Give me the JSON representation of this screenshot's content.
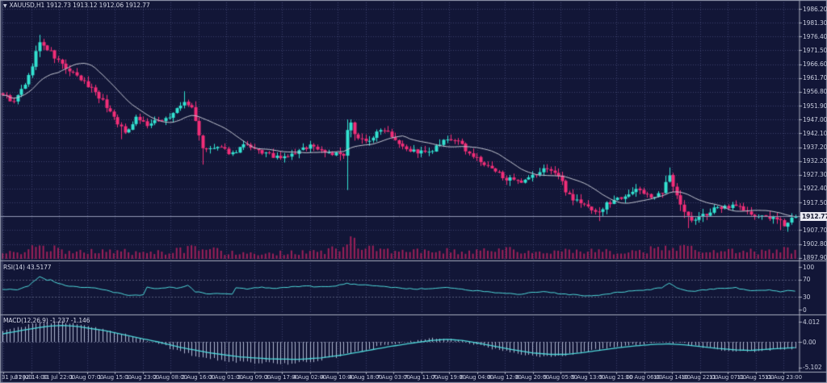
{
  "title_bar": {
    "collapse_icon": "▼",
    "symbol_info": "XAUUSD,H1  1912.73 1913.12 1912.06 1912.77"
  },
  "panes": {
    "rsi": {
      "label": "RSI(14) 43.5177",
      "level_labels": [
        "100",
        "70",
        "30",
        "0"
      ]
    },
    "macd": {
      "label": "MACD(12,26,9) -1.237 -1.146",
      "level_labels": [
        "4.012",
        "0.00",
        "-5.102"
      ]
    }
  },
  "price_axis": {
    "labels": [
      "1986.20",
      "1981.30",
      "1976.40",
      "1971.50",
      "1966.60",
      "1961.70",
      "1956.80",
      "1951.90",
      "1947.00",
      "1942.10",
      "1937.20",
      "1932.20",
      "1927.30",
      "1922.40",
      "1917.50",
      "1912.60",
      "1907.70",
      "1902.80",
      "1897.90"
    ],
    "current_price": "1912.77"
  },
  "time_axis": {
    "labels": [
      "31 Jul 2023",
      "31 Jul 14:00",
      "31 Jul 22:00",
      "1 Aug 07:00",
      "1 Aug 15:00",
      "1 Aug 23:00",
      "2 Aug 08:00",
      "2 Aug 16:00",
      "3 Aug 01:00",
      "3 Aug 09:00",
      "3 Aug 17:00",
      "4 Aug 02:00",
      "4 Aug 10:00",
      "4 Aug 18:00",
      "7 Aug 03:00",
      "7 Aug 11:00",
      "7 Aug 19:00",
      "8 Aug 04:00",
      "8 Aug 12:00",
      "8 Aug 20:00",
      "9 Aug 05:00",
      "9 Aug 13:00",
      "9 Aug 21:00",
      "10 Aug 06:00",
      "10 Aug 14:00",
      "10 Aug 22:00",
      "11 Aug 07:00",
      "11 Aug 15:00",
      "11 Aug 23:00"
    ]
  },
  "colors": {
    "background": "#121637",
    "bull": "#33e2d1",
    "bear": "#f22e78",
    "volume": "#9e2059",
    "ma": "#c2c5d1",
    "indicator_line": "#4fd8da",
    "histogram": "#aeb6cf",
    "grid": "rgba(92,100,152,0.55)",
    "level_line": "rgba(150,156,190,0.5)",
    "separator": "#a9aebf",
    "price_line": "#9298b4",
    "frame": "#9aa0b4"
  },
  "chart_data": [
    {
      "type": "candlestick",
      "title": "XAUUSD H1",
      "bars": 215,
      "ylim": [
        1897.9,
        1986.2
      ],
      "y_step": 4.9,
      "x_range": [
        "31 Jul 2023 00:00",
        "11 Aug 2023 23:00"
      ],
      "ohlc_last": {
        "open": 1912.73,
        "high": 1913.12,
        "low": 1912.06,
        "close": 1912.77
      },
      "current_price": 1912.77,
      "overlay": "SMA",
      "noise_seed": 9,
      "close_anchors": [
        [
          0,
          1956
        ],
        [
          3,
          1953
        ],
        [
          7,
          1962
        ],
        [
          9,
          1971
        ],
        [
          10,
          1974
        ],
        [
          12,
          1972
        ],
        [
          14,
          1969
        ],
        [
          18,
          1964
        ],
        [
          21,
          1961
        ],
        [
          25,
          1957
        ],
        [
          30,
          1948
        ],
        [
          32,
          1944
        ],
        [
          33,
          1942
        ],
        [
          36,
          1948
        ],
        [
          39,
          1945
        ],
        [
          45,
          1948
        ],
        [
          49,
          1953
        ],
        [
          51,
          1951
        ],
        [
          53,
          1942
        ],
        [
          54,
          1936
        ],
        [
          58,
          1937
        ],
        [
          62,
          1935
        ],
        [
          65,
          1938
        ],
        [
          68,
          1936
        ],
        [
          71,
          1935
        ],
        [
          75,
          1933
        ],
        [
          79,
          1935
        ],
        [
          83,
          1938
        ],
        [
          86,
          1936
        ],
        [
          89,
          1935
        ],
        [
          92,
          1934
        ],
        [
          93,
          1942
        ],
        [
          94,
          1945
        ],
        [
          96,
          1941
        ],
        [
          98,
          1939
        ],
        [
          101,
          1942
        ],
        [
          103,
          1944
        ],
        [
          107,
          1939
        ],
        [
          110,
          1936
        ],
        [
          115,
          1935
        ],
        [
          119,
          1939
        ],
        [
          122,
          1940
        ],
        [
          127,
          1934
        ],
        [
          131,
          1930
        ],
        [
          135,
          1927
        ],
        [
          138,
          1925
        ],
        [
          140,
          1924
        ],
        [
          142,
          1926
        ],
        [
          147,
          1930
        ],
        [
          150,
          1927
        ],
        [
          152,
          1922
        ],
        [
          154,
          1919
        ],
        [
          158,
          1916
        ],
        [
          161,
          1914
        ],
        [
          163,
          1917
        ],
        [
          166,
          1919
        ],
        [
          169,
          1921
        ],
        [
          172,
          1922
        ],
        [
          176,
          1919
        ],
        [
          178,
          1921
        ],
        [
          180,
          1927
        ],
        [
          182,
          1921
        ],
        [
          184,
          1914
        ],
        [
          186,
          1911
        ],
        [
          189,
          1913
        ],
        [
          192,
          1915
        ],
        [
          195,
          1916
        ],
        [
          198,
          1917
        ],
        [
          201,
          1914
        ],
        [
          204,
          1912
        ],
        [
          206,
          1913
        ],
        [
          209,
          1911
        ],
        [
          211,
          1910
        ],
        [
          213,
          1912
        ],
        [
          214,
          1912.77
        ]
      ],
      "wick_events": [
        {
          "bar": 10,
          "high": 1977
        },
        {
          "bar": 32,
          "low": 1940
        },
        {
          "bar": 49,
          "high": 1957
        },
        {
          "bar": 54,
          "low": 1931
        },
        {
          "bar": 93,
          "low": 1922,
          "high": 1947
        },
        {
          "bar": 152,
          "low": 1920
        },
        {
          "bar": 161,
          "low": 1911
        },
        {
          "bar": 180,
          "high": 1930
        },
        {
          "bar": 185,
          "low": 1908.5
        },
        {
          "bar": 210,
          "low": 1907.8
        }
      ],
      "volume_profile_anchors": [
        [
          0,
          0.2
        ],
        [
          8,
          0.45
        ],
        [
          12,
          0.5
        ],
        [
          20,
          0.3
        ],
        [
          30,
          0.4
        ],
        [
          36,
          0.25
        ],
        [
          45,
          0.3
        ],
        [
          50,
          0.45
        ],
        [
          54,
          0.5
        ],
        [
          60,
          0.3
        ],
        [
          70,
          0.25
        ],
        [
          80,
          0.3
        ],
        [
          88,
          0.35
        ],
        [
          92,
          0.6
        ],
        [
          93,
          1.0
        ],
        [
          95,
          0.8
        ],
        [
          99,
          0.45
        ],
        [
          104,
          0.4
        ],
        [
          110,
          0.35
        ],
        [
          118,
          0.4
        ],
        [
          124,
          0.3
        ],
        [
          131,
          0.4
        ],
        [
          137,
          0.45
        ],
        [
          141,
          0.35
        ],
        [
          148,
          0.3
        ],
        [
          153,
          0.4
        ],
        [
          160,
          0.35
        ],
        [
          167,
          0.3
        ],
        [
          173,
          0.35
        ],
        [
          179,
          0.55
        ],
        [
          183,
          0.6
        ],
        [
          187,
          0.4
        ],
        [
          193,
          0.35
        ],
        [
          198,
          0.4
        ],
        [
          204,
          0.3
        ],
        [
          210,
          0.45
        ],
        [
          214,
          0.35
        ]
      ]
    },
    {
      "type": "line",
      "name": "RSI",
      "params": "14",
      "current": 43.5177,
      "range": [
        0,
        100
      ],
      "levels": [
        70,
        30
      ],
      "anchors": [
        [
          0,
          48
        ],
        [
          4,
          46
        ],
        [
          7,
          56
        ],
        [
          10,
          77
        ],
        [
          12,
          68
        ],
        [
          13,
          70
        ],
        [
          15,
          61
        ],
        [
          18,
          55
        ],
        [
          22,
          52
        ],
        [
          26,
          49
        ],
        [
          30,
          41
        ],
        [
          33,
          35
        ],
        [
          35,
          33
        ],
        [
          38,
          34
        ],
        [
          39,
          53
        ],
        [
          42,
          49
        ],
        [
          45,
          52
        ],
        [
          47,
          50
        ],
        [
          50,
          57
        ],
        [
          52,
          42
        ],
        [
          55,
          38
        ],
        [
          58,
          37
        ],
        [
          62,
          36
        ],
        [
          63,
          51
        ],
        [
          66,
          49
        ],
        [
          70,
          52
        ],
        [
          74,
          50
        ],
        [
          78,
          53
        ],
        [
          82,
          55
        ],
        [
          86,
          53
        ],
        [
          90,
          56
        ],
        [
          93,
          62
        ],
        [
          96,
          57
        ],
        [
          100,
          57
        ],
        [
          104,
          53
        ],
        [
          108,
          50
        ],
        [
          112,
          48
        ],
        [
          116,
          50
        ],
        [
          120,
          52
        ],
        [
          124,
          47
        ],
        [
          128,
          44
        ],
        [
          132,
          41
        ],
        [
          136,
          38
        ],
        [
          140,
          36
        ],
        [
          143,
          40
        ],
        [
          146,
          43
        ],
        [
          150,
          38
        ],
        [
          154,
          35
        ],
        [
          158,
          32
        ],
        [
          162,
          35
        ],
        [
          166,
          40
        ],
        [
          170,
          44
        ],
        [
          174,
          46
        ],
        [
          178,
          52
        ],
        [
          180,
          62
        ],
        [
          182,
          52
        ],
        [
          184,
          46
        ],
        [
          186,
          43
        ],
        [
          189,
          46
        ],
        [
          192,
          48
        ],
        [
          195,
          50
        ],
        [
          198,
          51
        ],
        [
          201,
          46
        ],
        [
          204,
          44
        ],
        [
          207,
          46
        ],
        [
          210,
          42
        ],
        [
          212,
          44
        ],
        [
          214,
          43.5
        ]
      ]
    },
    {
      "type": "line+histogram",
      "name": "MACD",
      "params": "12,26,9",
      "current_macd": -1.237,
      "current_signal": -1.146,
      "axis_values": [
        4.012,
        0.0,
        -5.102
      ],
      "signal_anchors": [
        [
          0,
          1.6
        ],
        [
          6,
          2.4
        ],
        [
          12,
          3.1
        ],
        [
          16,
          3.3
        ],
        [
          20,
          3.1
        ],
        [
          28,
          2.2
        ],
        [
          36,
          0.9
        ],
        [
          42,
          0
        ],
        [
          48,
          -1.1
        ],
        [
          56,
          -2.2
        ],
        [
          64,
          -3.0
        ],
        [
          72,
          -3.4
        ],
        [
          80,
          -3.5
        ],
        [
          86,
          -3.2
        ],
        [
          92,
          -2.6
        ],
        [
          98,
          -1.8
        ],
        [
          104,
          -1.0
        ],
        [
          110,
          -0.3
        ],
        [
          116,
          0.3
        ],
        [
          120,
          0.5
        ],
        [
          124,
          0.3
        ],
        [
          128,
          -0.2
        ],
        [
          133,
          -0.9
        ],
        [
          138,
          -1.6
        ],
        [
          143,
          -2.2
        ],
        [
          148,
          -2.5
        ],
        [
          152,
          -2.5
        ],
        [
          156,
          -2.2
        ],
        [
          161,
          -1.7
        ],
        [
          166,
          -1.2
        ],
        [
          171,
          -0.8
        ],
        [
          176,
          -0.5
        ],
        [
          180,
          -0.4
        ],
        [
          184,
          -0.6
        ],
        [
          188,
          -0.9
        ],
        [
          193,
          -1.3
        ],
        [
          198,
          -1.6
        ],
        [
          202,
          -1.7
        ],
        [
          206,
          -1.5
        ],
        [
          210,
          -1.3
        ],
        [
          214,
          -1.146
        ]
      ],
      "macd_anchors": [
        [
          0,
          2.2
        ],
        [
          6,
          3.2
        ],
        [
          12,
          3.9
        ],
        [
          16,
          4.0
        ],
        [
          20,
          3.6
        ],
        [
          28,
          2.4
        ],
        [
          36,
          0.8
        ],
        [
          41,
          0
        ],
        [
          46,
          -1.5
        ],
        [
          52,
          -2.8
        ],
        [
          58,
          -3.6
        ],
        [
          64,
          -4.0
        ],
        [
          72,
          -4.3
        ],
        [
          78,
          -4.4
        ],
        [
          84,
          -3.9
        ],
        [
          90,
          -3.0
        ],
        [
          96,
          -1.9
        ],
        [
          102,
          -0.9
        ],
        [
          108,
          -0.1
        ],
        [
          114,
          0.6
        ],
        [
          118,
          0.8
        ],
        [
          122,
          0.4
        ],
        [
          126,
          -0.3
        ],
        [
          131,
          -1.2
        ],
        [
          136,
          -2.0
        ],
        [
          141,
          -2.6
        ],
        [
          146,
          -2.9
        ],
        [
          150,
          -2.8
        ],
        [
          155,
          -2.3
        ],
        [
          160,
          -1.6
        ],
        [
          165,
          -1.0
        ],
        [
          170,
          -0.5
        ],
        [
          175,
          -0.2
        ],
        [
          179,
          0
        ],
        [
          183,
          -0.3
        ],
        [
          187,
          -0.8
        ],
        [
          191,
          -1.3
        ],
        [
          196,
          -1.7
        ],
        [
          200,
          -1.9
        ],
        [
          204,
          -1.8
        ],
        [
          208,
          -1.5
        ],
        [
          212,
          -1.3
        ],
        [
          214,
          -1.237
        ]
      ]
    }
  ]
}
